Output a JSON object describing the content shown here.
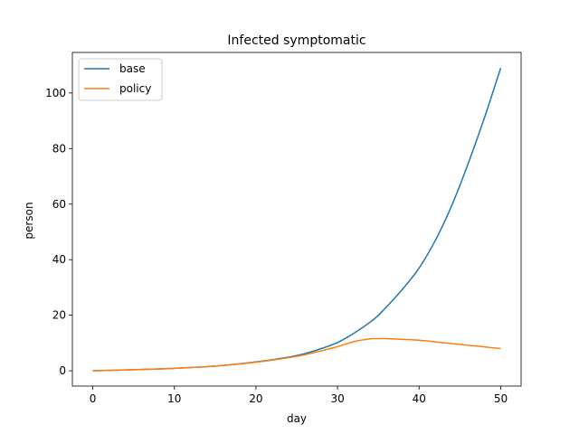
{
  "chart_data": {
    "type": "line",
    "title": "Infected symptomatic",
    "xlabel": "day",
    "ylabel": "person",
    "xlim": [
      -2.5,
      52.5
    ],
    "ylim": [
      -5.5,
      114.6
    ],
    "xticks": [
      0,
      10,
      20,
      30,
      40,
      50
    ],
    "yticks": [
      0,
      20,
      40,
      60,
      80,
      100
    ],
    "grid": false,
    "legend": "top-left",
    "x": [
      0,
      5,
      10,
      15,
      20,
      25,
      28,
      30,
      32,
      34,
      35,
      36,
      38,
      40,
      42,
      44,
      46,
      48,
      50
    ],
    "series": [
      {
        "name": "base",
        "color": "#1f77b4",
        "values": [
          0.0,
          0.4,
          0.9,
          1.7,
          3.2,
          5.5,
          8.0,
          10.2,
          13.5,
          17.5,
          20.0,
          23.0,
          29.5,
          37.0,
          47.0,
          59.5,
          74.5,
          91.0,
          109.0
        ]
      },
      {
        "name": "policy",
        "color": "#ff7f0e",
        "values": [
          0.0,
          0.4,
          0.9,
          1.7,
          3.1,
          5.2,
          7.2,
          8.7,
          10.5,
          11.5,
          11.6,
          11.6,
          11.3,
          11.0,
          10.4,
          9.8,
          9.2,
          8.6,
          8.0
        ]
      }
    ]
  }
}
